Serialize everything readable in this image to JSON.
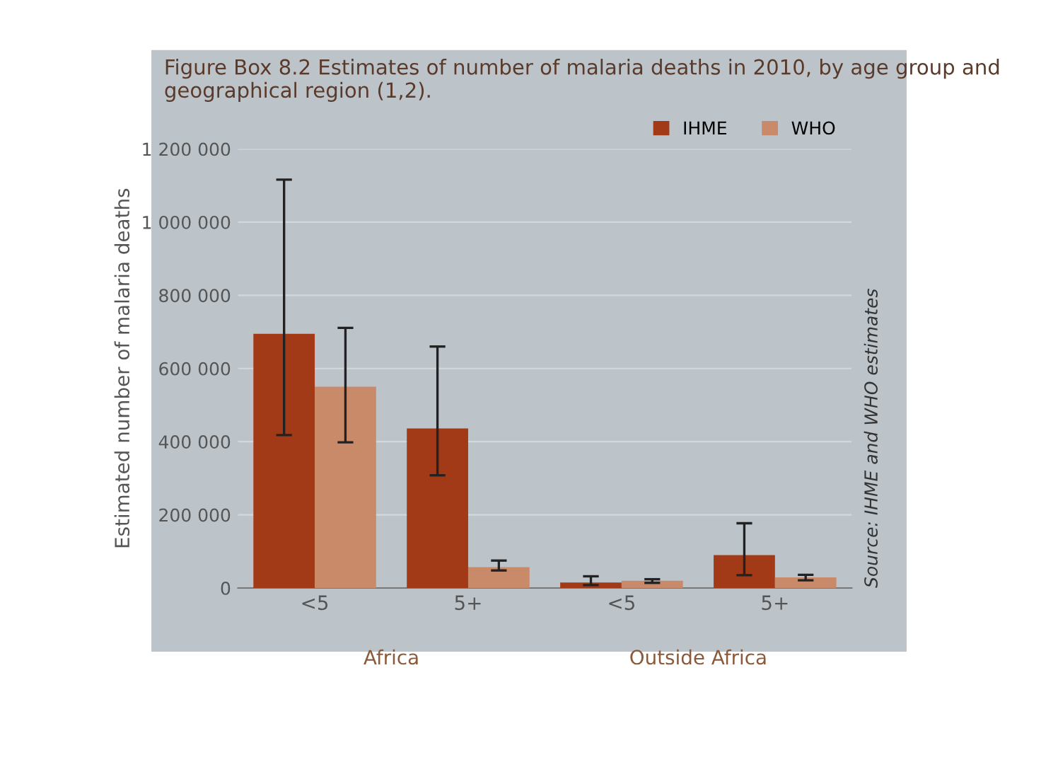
{
  "chart_data": {
    "type": "bar",
    "title": "Figure Box 8.2 Estimates of number of malaria deaths in 2010, by age group and geographical region (1,2).",
    "ylabel": "Estimated number of malaria deaths",
    "categories": [
      "<5",
      "5+",
      "<5",
      "5+"
    ],
    "series": [
      {
        "name": "IHME",
        "color": "#a33a17",
        "values": [
          695000,
          436000,
          15000,
          90000
        ],
        "errors": [
          [
            418000,
            1116000
          ],
          [
            308000,
            660000
          ],
          [
            8000,
            32000
          ],
          [
            35000,
            177000
          ]
        ]
      },
      {
        "name": "WHO",
        "color": "#c98a6a",
        "values": [
          550000,
          57000,
          20000,
          29000
        ],
        "errors": [
          [
            398000,
            711000
          ],
          [
            48000,
            75000
          ],
          [
            14000,
            24000
          ],
          [
            21000,
            36000
          ]
        ]
      }
    ],
    "ylim": [
      0,
      1200000
    ],
    "yticks": [
      0,
      {
        "value": 200000,
        "label": "200 000"
      },
      {
        "value": 400000,
        "label": "400 000"
      },
      {
        "value": 600000,
        "label": "600 000"
      },
      {
        "value": 800000,
        "label": "800 000"
      },
      {
        "value": 1000000,
        "label": "1 000 000"
      },
      {
        "value": 1200000,
        "label": "1 200 000"
      }
    ],
    "grid": "y",
    "legend": "top right",
    "annotations": [
      "Africa",
      "Outside Africa",
      "Source: IHME and WHO estimates"
    ]
  }
}
